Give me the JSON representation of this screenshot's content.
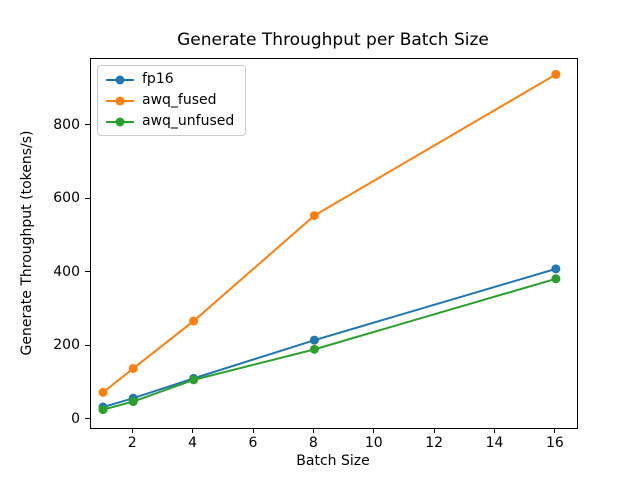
{
  "chart_data": {
    "type": "line",
    "title": "Generate Throughput per Batch Size",
    "xlabel": "Batch Size",
    "ylabel": "Generate Throughput (tokens/s)",
    "x": [
      1,
      2,
      4,
      8,
      16
    ],
    "series": [
      {
        "name": "fp16",
        "color": "#1f77b4",
        "values": [
          35,
          59,
          113,
          217,
          411
        ]
      },
      {
        "name": "awq_fused",
        "color": "#ff7f0e",
        "values": [
          75,
          140,
          269,
          556,
          940
        ]
      },
      {
        "name": "awq_unfused",
        "color": "#2ca02c",
        "values": [
          28,
          50,
          109,
          192,
          384
        ]
      }
    ],
    "xlim": [
      0.6,
      16.7
    ],
    "ylim": [
      -22,
      982
    ],
    "xticks": [
      2,
      4,
      6,
      8,
      10,
      12,
      14,
      16
    ],
    "yticks": [
      0,
      200,
      400,
      600,
      800
    ],
    "grid": false,
    "legend_position": "upper left",
    "marker": "o",
    "line_width": 2,
    "marker_radius": 4.5,
    "background": "#ffffff"
  }
}
